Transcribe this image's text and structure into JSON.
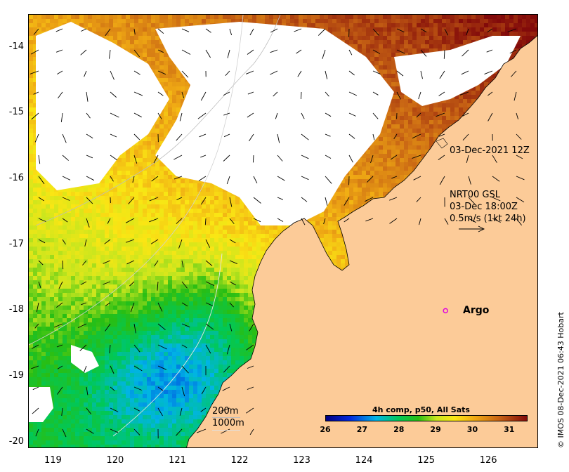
{
  "map": {
    "lon_range": [
      118.6,
      126.8
    ],
    "lat_range": [
      -20.1,
      -13.5
    ],
    "x_ticks": [
      119,
      120,
      121,
      122,
      123,
      124,
      125,
      126
    ],
    "y_ticks": [
      -14,
      -15,
      -16,
      -17,
      -18,
      -19,
      -20
    ],
    "land_color": "#fccb98",
    "nodata_color": "#ffffff"
  },
  "annotations": {
    "timestamp": "03-Dec-2021 12Z",
    "current_model": "NRT00 GSL",
    "current_time": "03-Dec 18:00Z",
    "current_scale": "0.5m/s (1kt 24h)"
  },
  "argo": {
    "label": "Argo",
    "lon": 125.3,
    "lat": -18.0,
    "color": "#e000e0"
  },
  "contours": {
    "shallow": "200m",
    "deep": "1000m"
  },
  "colorbar": {
    "title": "4h comp, p50, All Sats",
    "min": 26,
    "max": 31.5,
    "ticks": [
      "26",
      "27",
      "28",
      "29",
      "30",
      "31"
    ]
  },
  "credit": "© IMOS 08-Dec-2021 06:43 Hobart"
}
